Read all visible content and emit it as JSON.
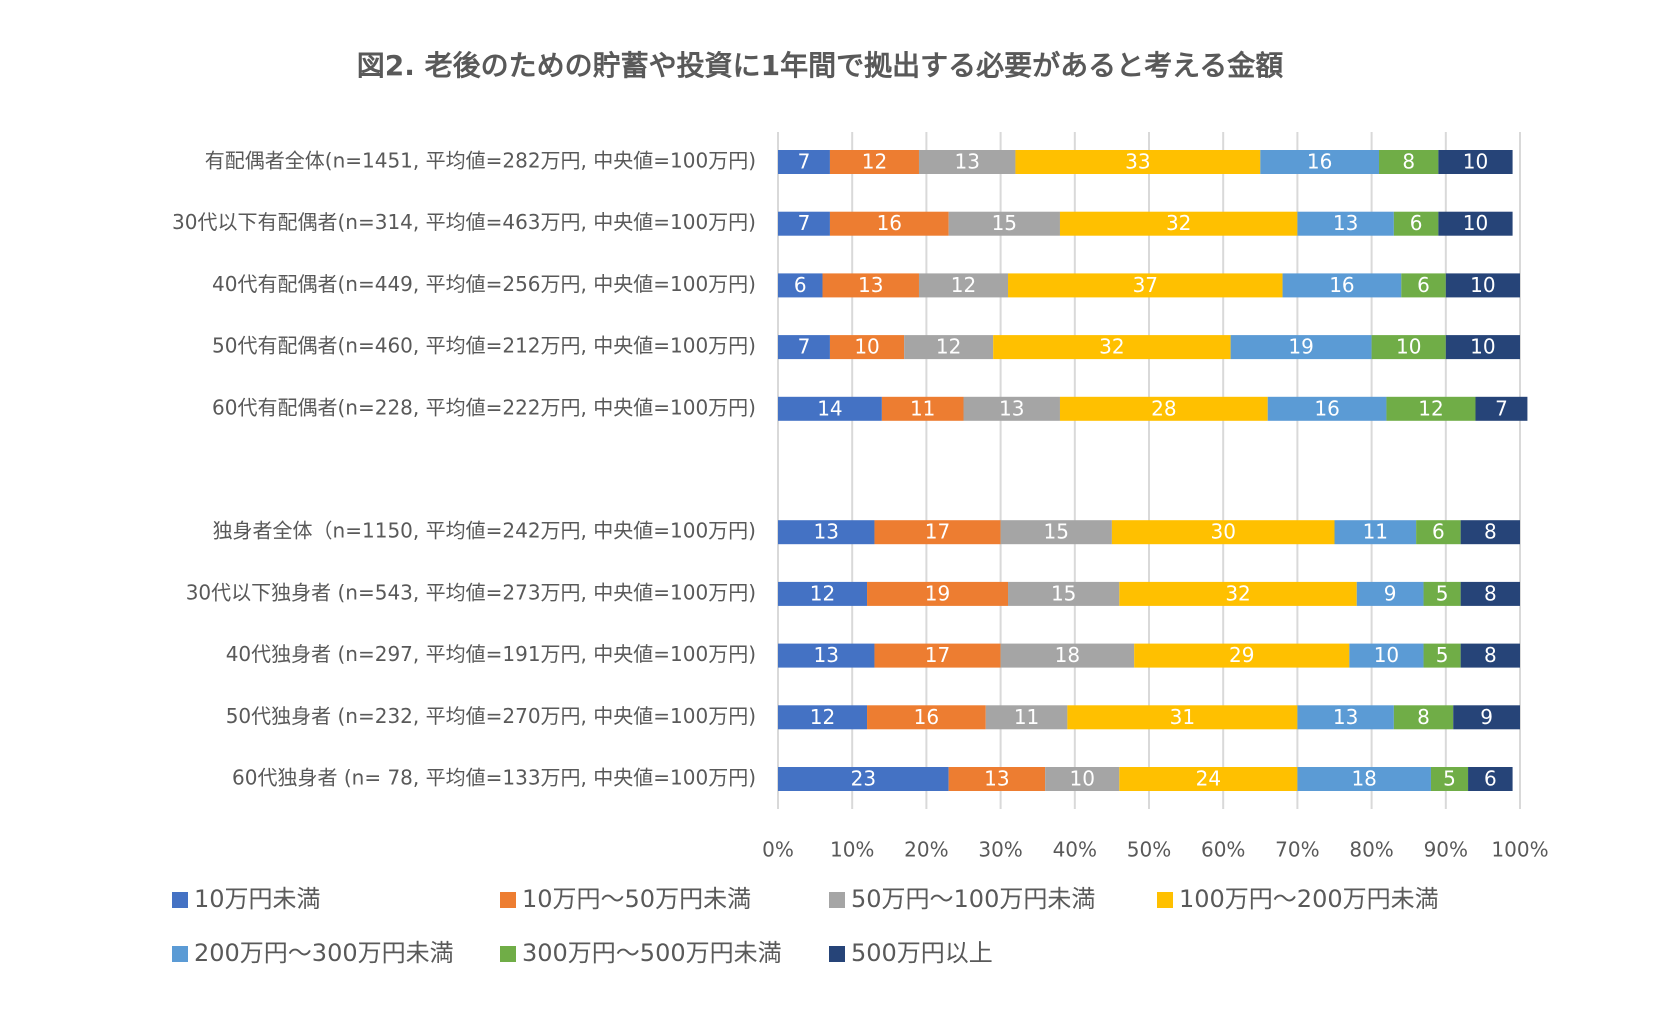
{
  "chart_data": {
    "type": "stacked-bar-horizontal",
    "title": "図2. 老後のための貯蓄や投資に1年間で拠出する必要があると考える金額",
    "categories": [
      "有配偶者全体(n=1451, 平均値=282万円, 中央値=100万円)",
      "30代以下有配偶者(n=314, 平均値=463万円, 中央値=100万円)",
      "40代有配偶者(n=449, 平均値=256万円, 中央値=100万円)",
      "50代有配偶者(n=460, 平均値=212万円, 中央値=100万円)",
      "60代有配偶者(n=228, 平均値=222万円, 中央値=100万円)",
      null,
      "独身者全体（n=1150, 平均値=242万円, 中央値=100万円)",
      "30代以下独身者 (n=543, 平均値=273万円, 中央値=100万円)",
      "40代独身者 (n=297, 平均値=191万円, 中央値=100万円)",
      "50代独身者 (n=232, 平均値=270万円, 中央値=100万円)",
      "60代独身者 (n= 78, 平均値=133万円, 中央値=100万円)"
    ],
    "series": [
      {
        "name": "10万円未満",
        "color": "#4472c4",
        "values": [
          7,
          7,
          6,
          7,
          14,
          null,
          13,
          12,
          13,
          12,
          23
        ]
      },
      {
        "name": "10万円～50万円未満",
        "color": "#ed7d31",
        "values": [
          12,
          16,
          13,
          10,
          11,
          null,
          17,
          19,
          17,
          16,
          13
        ]
      },
      {
        "name": "50万円～100万円未満",
        "color": "#a5a5a5",
        "values": [
          13,
          15,
          12,
          12,
          13,
          null,
          15,
          15,
          18,
          11,
          10
        ]
      },
      {
        "name": "100万円～200万円未満",
        "color": "#ffc000",
        "values": [
          33,
          32,
          37,
          32,
          28,
          null,
          30,
          32,
          29,
          31,
          24
        ]
      },
      {
        "name": "200万円～300万円未満",
        "color": "#5b9bd5",
        "values": [
          16,
          13,
          16,
          19,
          16,
          null,
          11,
          9,
          10,
          13,
          18
        ]
      },
      {
        "name": "300万円～500万円未満",
        "color": "#70ad47",
        "values": [
          8,
          6,
          6,
          10,
          12,
          null,
          6,
          5,
          5,
          8,
          5
        ]
      },
      {
        "name": "500万円以上",
        "color": "#264478",
        "values": [
          10,
          10,
          10,
          10,
          7,
          null,
          8,
          8,
          8,
          9,
          6
        ]
      }
    ],
    "xlim": [
      0,
      100
    ],
    "xticks": [
      {
        "value": 0,
        "label": "0%"
      },
      {
        "value": 10,
        "label": "10%"
      },
      {
        "value": 20,
        "label": "20%"
      },
      {
        "value": 30,
        "label": "30%"
      },
      {
        "value": 40,
        "label": "40%"
      },
      {
        "value": 50,
        "label": "50%"
      },
      {
        "value": 60,
        "label": "60%"
      },
      {
        "value": 70,
        "label": "70%"
      },
      {
        "value": 80,
        "label": "80%"
      },
      {
        "value": 90,
        "label": "90%"
      },
      {
        "value": 100,
        "label": "100%"
      }
    ],
    "grid": true,
    "legend": "bottom"
  }
}
